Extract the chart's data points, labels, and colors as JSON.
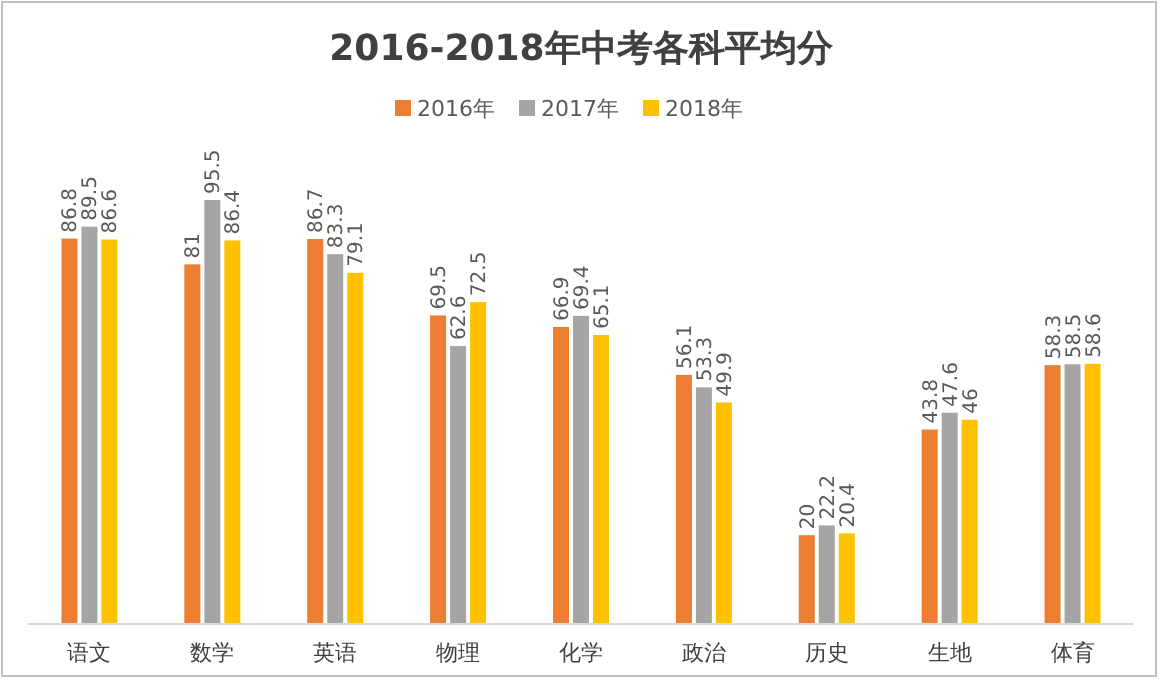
{
  "chart_data": {
    "type": "bar",
    "title": "2016-2018年中考各科平均分",
    "categories": [
      "语文",
      "数学",
      "英语",
      "物理",
      "化学",
      "政治",
      "历史",
      "生地",
      "体育"
    ],
    "series": [
      {
        "name": "2016年",
        "color": "#ed7d31",
        "values": [
          86.8,
          81,
          86.7,
          69.5,
          66.9,
          56.1,
          20,
          43.8,
          58.3
        ]
      },
      {
        "name": "2017年",
        "color": "#a5a5a5",
        "values": [
          89.5,
          95.5,
          83.3,
          62.6,
          69.4,
          53.3,
          22.2,
          47.6,
          58.5
        ]
      },
      {
        "name": "2018年",
        "color": "#ffc000",
        "values": [
          86.6,
          86.4,
          79.1,
          72.5,
          65.1,
          49.9,
          20.4,
          46,
          58.6
        ]
      }
    ],
    "tick_labels": "x",
    "data_labels": true,
    "legend": "top",
    "grid": false
  }
}
